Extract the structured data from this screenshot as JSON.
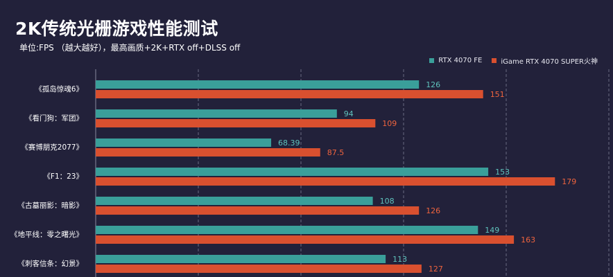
{
  "chart_data": {
    "type": "bar",
    "orientation": "horizontal",
    "title": "2K传统光栅游戏性能测试",
    "subtitle": "单位:FPS （越大越好），最高画质+2K+RTX off+DLSS off",
    "categories": [
      "《孤岛惊魂6》",
      "《看门狗：军团》",
      "《赛博朋克2077》",
      "《F1：23》",
      "《古墓丽影：暗影》",
      "《地平线：零之曙光》",
      "《刺客信条：幻景》"
    ],
    "series": [
      {
        "name": "RTX 4070 FE",
        "values": [
          126,
          94,
          68.39,
          153,
          108,
          149,
          113
        ],
        "labels": [
          "126",
          "94",
          "68.39",
          "153",
          "108",
          "149",
          "113"
        ],
        "color": "#3a9f9a",
        "label_color": "#5fc3bd"
      },
      {
        "name": "iGame RTX 4070 SUPER火神",
        "values": [
          151,
          109,
          87.5,
          179,
          126,
          163,
          127
        ],
        "labels": [
          "151",
          "109",
          "87.5",
          "179",
          "126",
          "163",
          "127"
        ],
        "color": "#d9502f",
        "label_color": "#f0643e"
      }
    ],
    "xlim": [
      0,
      200
    ],
    "grid": true,
    "legend_position": "top-right",
    "background": "#22213a"
  }
}
